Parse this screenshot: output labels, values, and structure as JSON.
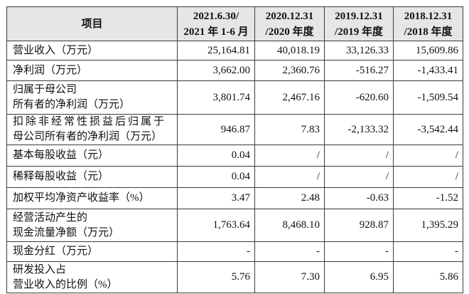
{
  "table": {
    "header": {
      "item_label": "项目",
      "periods": [
        {
          "line1": "2021.6.30/",
          "line2": "2021 年 1-6 月"
        },
        {
          "line1": "2020.12.31",
          "line2": "/2020 年度"
        },
        {
          "line1": "2019.12.31",
          "line2": "/2019 年度"
        },
        {
          "line1": "2018.12.31",
          "line2": "/2018 年度"
        }
      ]
    },
    "rows": [
      {
        "label": [
          "营业收入（万元）"
        ],
        "values": [
          "25,164.81",
          "40,018.19",
          "33,126.33",
          "15,609.86"
        ]
      },
      {
        "label": [
          "净利润（万元）"
        ],
        "values": [
          "3,662.00",
          "2,360.76",
          "-516.27",
          "-1,433.41"
        ]
      },
      {
        "label": [
          "归属于母公司",
          "所有者的净利润（万元）"
        ],
        "values": [
          "3,801.74",
          "2,467.16",
          "-620.60",
          "-1,509.54"
        ]
      },
      {
        "label": [
          "扣除非经常性损益后归属于",
          "母公司所有者的净利润（万元）"
        ],
        "values": [
          "946.87",
          "7.83",
          "-2,133.32",
          "-3,542.44"
        ]
      },
      {
        "label": [
          "基本每股收益（元）"
        ],
        "values": [
          "0.04",
          "/",
          "/",
          "/"
        ]
      },
      {
        "label": [
          "稀释每股收益（元）"
        ],
        "values": [
          "0.04",
          "/",
          "/",
          "/"
        ]
      },
      {
        "label": [
          "加权平均净资产收益率（%）"
        ],
        "values": [
          "3.47",
          "2.48",
          "-0.63",
          "-1.52"
        ]
      },
      {
        "label": [
          "经营活动产生的",
          "现金流量净额（万元）"
        ],
        "values": [
          "1,763.64",
          "8,468.10",
          "928.87",
          "1,395.29"
        ]
      },
      {
        "label": [
          "现金分红（万元）"
        ],
        "values": [
          "-",
          "-",
          "-",
          "-"
        ]
      },
      {
        "label": [
          "研发投入占",
          "营业收入的比例（%）"
        ],
        "values": [
          "5.76",
          "7.30",
          "6.95",
          "5.86"
        ]
      }
    ]
  },
  "colors": {
    "header_bg": "#e6e6e6",
    "border": "#3a3a3a",
    "text": "#111111"
  }
}
